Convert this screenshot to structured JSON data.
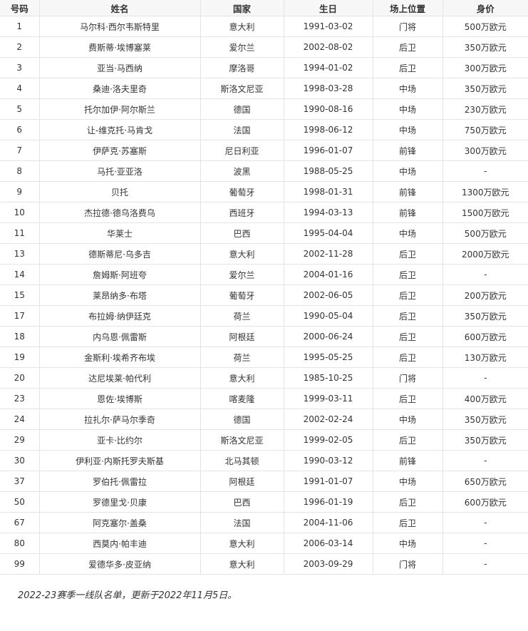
{
  "table": {
    "headers": [
      "号码",
      "姓名",
      "国家",
      "生日",
      "场上位置",
      "身价"
    ],
    "rows": [
      [
        "1",
        "马尔科·西尔韦斯特里",
        "意大利",
        "1991-03-02",
        "门将",
        "500万欧元"
      ],
      [
        "2",
        "费斯蒂·埃博塞莱",
        "爱尔兰",
        "2002-08-02",
        "后卫",
        "350万欧元"
      ],
      [
        "3",
        "亚当·马西纳",
        "摩洛哥",
        "1994-01-02",
        "后卫",
        "300万欧元"
      ],
      [
        "4",
        "桑迪·洛夫里奇",
        "斯洛文尼亚",
        "1998-03-28",
        "中场",
        "350万欧元"
      ],
      [
        "5",
        "托尔加伊·阿尔斯兰",
        "德国",
        "1990-08-16",
        "中场",
        "230万欧元"
      ],
      [
        "6",
        "让-维克托·马肯戈",
        "法国",
        "1998-06-12",
        "中场",
        "750万欧元"
      ],
      [
        "7",
        "伊萨克·苏塞斯",
        "尼日利亚",
        "1996-01-07",
        "前锋",
        "300万欧元"
      ],
      [
        "8",
        "马托·亚亚洛",
        "波黑",
        "1988-05-25",
        "中场",
        "-"
      ],
      [
        "9",
        "贝托",
        "葡萄牙",
        "1998-01-31",
        "前锋",
        "1300万欧元"
      ],
      [
        "10",
        "杰拉德·德乌洛费乌",
        "西班牙",
        "1994-03-13",
        "前锋",
        "1500万欧元"
      ],
      [
        "11",
        "华莱士",
        "巴西",
        "1995-04-04",
        "中场",
        "500万欧元"
      ],
      [
        "13",
        "德斯蒂尼·乌多吉",
        "意大利",
        "2002-11-28",
        "后卫",
        "2000万欧元"
      ],
      [
        "14",
        "詹姆斯·阿班夸",
        "爱尔兰",
        "2004-01-16",
        "后卫",
        "-"
      ],
      [
        "15",
        "莱昂纳多·布塔",
        "葡萄牙",
        "2002-06-05",
        "后卫",
        "200万欧元"
      ],
      [
        "17",
        "布拉姆·纳伊廷克",
        "荷兰",
        "1990-05-04",
        "后卫",
        "350万欧元"
      ],
      [
        "18",
        "内乌恩·佩雷斯",
        "阿根廷",
        "2000-06-24",
        "后卫",
        "600万欧元"
      ],
      [
        "19",
        "金斯利·埃希齐布埃",
        "荷兰",
        "1995-05-25",
        "后卫",
        "130万欧元"
      ],
      [
        "20",
        "达尼埃莱·帕代利",
        "意大利",
        "1985-10-25",
        "门将",
        "-"
      ],
      [
        "23",
        "恩佐·埃博斯",
        "喀麦隆",
        "1999-03-11",
        "后卫",
        "400万欧元"
      ],
      [
        "24",
        "拉扎尔·萨马尔季奇",
        "德国",
        "2002-02-24",
        "中场",
        "350万欧元"
      ],
      [
        "29",
        "亚卡·比约尔",
        "斯洛文尼亚",
        "1999-02-05",
        "后卫",
        "350万欧元"
      ],
      [
        "30",
        "伊利亚·内斯托罗夫斯基",
        "北马其顿",
        "1990-03-12",
        "前锋",
        "-"
      ],
      [
        "37",
        "罗伯托·佩雷拉",
        "阿根廷",
        "1991-01-07",
        "中场",
        "650万欧元"
      ],
      [
        "50",
        "罗德里戈·贝康",
        "巴西",
        "1996-01-19",
        "后卫",
        "600万欧元"
      ],
      [
        "67",
        "阿克塞尔·盖桑",
        "法国",
        "2004-11-06",
        "后卫",
        "-"
      ],
      [
        "80",
        "西莫内·帕丰迪",
        "意大利",
        "2006-03-14",
        "中场",
        "-"
      ],
      [
        "99",
        "爱德华多·皮亚纳",
        "意大利",
        "2003-09-29",
        "门将",
        "-"
      ]
    ]
  },
  "caption": "2022-23赛季一线队名单，更新于2022年11月5日。"
}
